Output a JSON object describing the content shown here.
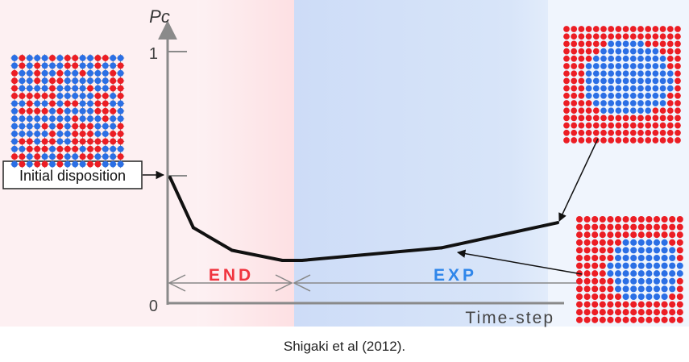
{
  "figure": {
    "y_axis_label": "Pc",
    "x_axis_label": "Time-step",
    "y_tick_top": "1",
    "y_tick_bottom": "0",
    "phase_left_label": "END",
    "phase_right_label": "EXP",
    "initial_label": "Initial disposition",
    "caption": "Shigaki et al (2012).",
    "colors": {
      "end_region": "#fde4e6",
      "end_region_left": "#fdeef0",
      "exp_region": "#d3e1f8",
      "exp_region_right": "#eef4fd",
      "phase_end_text": "#f0353f",
      "phase_exp_text": "#2f86ea",
      "curve": "#111111",
      "axis": "#8a8a8a",
      "lattice_red": "#ec1d24",
      "lattice_blue": "#2b6fe5"
    }
  },
  "chart_data": {
    "type": "line",
    "ylabel": "Pc",
    "xlabel": "Time-step",
    "ylim": [
      0,
      1
    ],
    "yticks": [
      "0",
      "1"
    ],
    "series": [
      {
        "x": [
          0,
          0.06,
          0.16,
          0.29,
          0.34,
          0.7,
          1.0
        ],
        "y": [
          0.5,
          0.3,
          0.21,
          0.17,
          0.17,
          0.22,
          0.32
        ]
      }
    ],
    "regions": [
      {
        "label": "END",
        "x_range": [
          0,
          0.32
        ]
      },
      {
        "label": "EXP",
        "x_range": [
          0.32,
          1.0
        ]
      }
    ],
    "annotations": [
      "Initial disposition"
    ]
  }
}
